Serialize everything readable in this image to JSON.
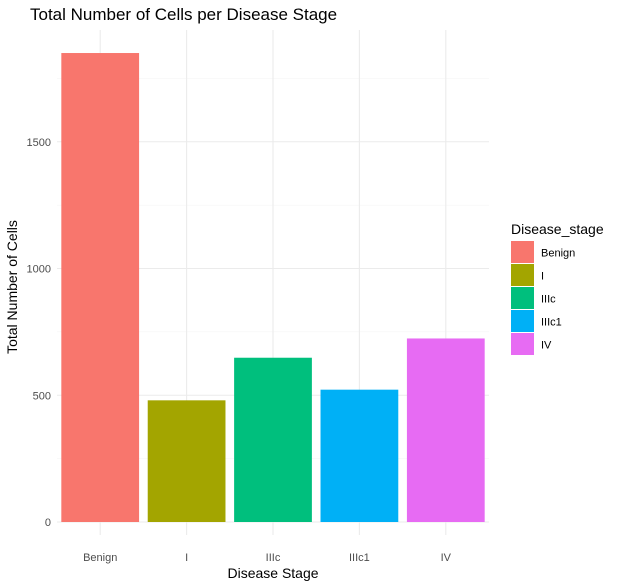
{
  "chart_data": {
    "type": "bar",
    "title": "Total Number of Cells per Disease Stage",
    "xlabel": "Disease Stage",
    "ylabel": "Total Number of Cells",
    "categories": [
      "Benign",
      "I",
      "IIIc",
      "IIIc1",
      "IV"
    ],
    "values": [
      1850,
      480,
      648,
      522,
      724
    ],
    "colors": [
      "#F8766D",
      "#A3A500",
      "#00BF7D",
      "#00B0F6",
      "#E76BF3"
    ],
    "ylim": [
      0,
      1900
    ],
    "yticks": [
      0,
      500,
      1000,
      1500
    ],
    "grid": true,
    "legend": {
      "title": "Disease_stage",
      "position": "right",
      "items": [
        "Benign",
        "I",
        "IIIc",
        "IIIc1",
        "IV"
      ]
    }
  }
}
